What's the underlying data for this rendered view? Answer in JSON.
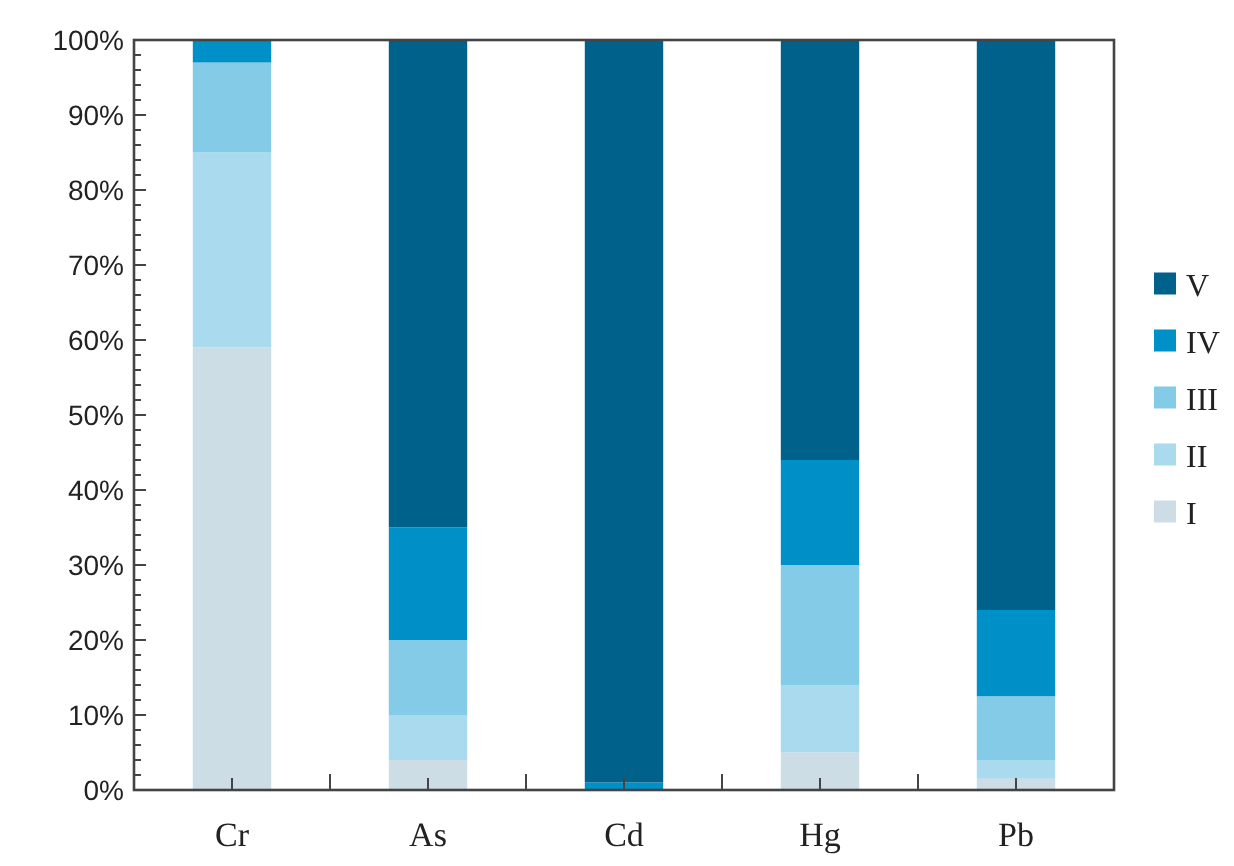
{
  "chart_data": {
    "type": "bar",
    "stacked": true,
    "categories": [
      "Cr",
      "As",
      "Cd",
      "Hg",
      "Pb"
    ],
    "series": [
      {
        "name": "I",
        "color": "#ccdde6",
        "values": [
          59,
          4,
          0,
          5,
          1.5
        ]
      },
      {
        "name": "II",
        "color": "#a9daee",
        "values": [
          26,
          6,
          0,
          9,
          2.5
        ]
      },
      {
        "name": "III",
        "color": "#84cbe8",
        "values": [
          12,
          10,
          0,
          16,
          8.5
        ]
      },
      {
        "name": "IV",
        "color": "#0090c8",
        "values": [
          3,
          15,
          1,
          14,
          11.5
        ]
      },
      {
        "name": "V",
        "color": "#00628b",
        "values": [
          0,
          65,
          99,
          56,
          76
        ]
      }
    ],
    "ylim": [
      0,
      100
    ],
    "yticks": [
      {
        "value": 0,
        "label": "0%"
      },
      {
        "value": 2,
        "label": null
      },
      {
        "value": 4,
        "label": null
      },
      {
        "value": 6,
        "label": null
      },
      {
        "value": 8,
        "label": null
      },
      {
        "value": 10,
        "label": "10%"
      },
      {
        "value": 12,
        "label": null
      },
      {
        "value": 14,
        "label": null
      },
      {
        "value": 16,
        "label": null
      },
      {
        "value": 18,
        "label": null
      },
      {
        "value": 20,
        "label": "20%"
      },
      {
        "value": 22,
        "label": null
      },
      {
        "value": 24,
        "label": null
      },
      {
        "value": 26,
        "label": null
      },
      {
        "value": 28,
        "label": null
      },
      {
        "value": 30,
        "label": "30%"
      },
      {
        "value": 32,
        "label": null
      },
      {
        "value": 34,
        "label": null
      },
      {
        "value": 36,
        "label": null
      },
      {
        "value": 38,
        "label": null
      },
      {
        "value": 40,
        "label": "40%"
      },
      {
        "value": 42,
        "label": null
      },
      {
        "value": 44,
        "label": null
      },
      {
        "value": 46,
        "label": null
      },
      {
        "value": 48,
        "label": null
      },
      {
        "value": 50,
        "label": "50%"
      },
      {
        "value": 52,
        "label": null
      },
      {
        "value": 54,
        "label": null
      },
      {
        "value": 56,
        "label": null
      },
      {
        "value": 58,
        "label": null
      },
      {
        "value": 60,
        "label": "60%"
      },
      {
        "value": 62,
        "label": null
      },
      {
        "value": 64,
        "label": null
      },
      {
        "value": 66,
        "label": null
      },
      {
        "value": 68,
        "label": null
      },
      {
        "value": 70,
        "label": "70%"
      },
      {
        "value": 72,
        "label": null
      },
      {
        "value": 74,
        "label": null
      },
      {
        "value": 76,
        "label": null
      },
      {
        "value": 78,
        "label": null
      },
      {
        "value": 80,
        "label": "80%"
      },
      {
        "value": 82,
        "label": null
      },
      {
        "value": 84,
        "label": null
      },
      {
        "value": 86,
        "label": null
      },
      {
        "value": 88,
        "label": null
      },
      {
        "value": 90,
        "label": "90%"
      },
      {
        "value": 92,
        "label": null
      },
      {
        "value": 94,
        "label": null
      },
      {
        "value": 96,
        "label": null
      },
      {
        "value": 98,
        "label": null
      },
      {
        "value": 100,
        "label": "100%"
      }
    ],
    "grid": false,
    "legend": "right"
  }
}
